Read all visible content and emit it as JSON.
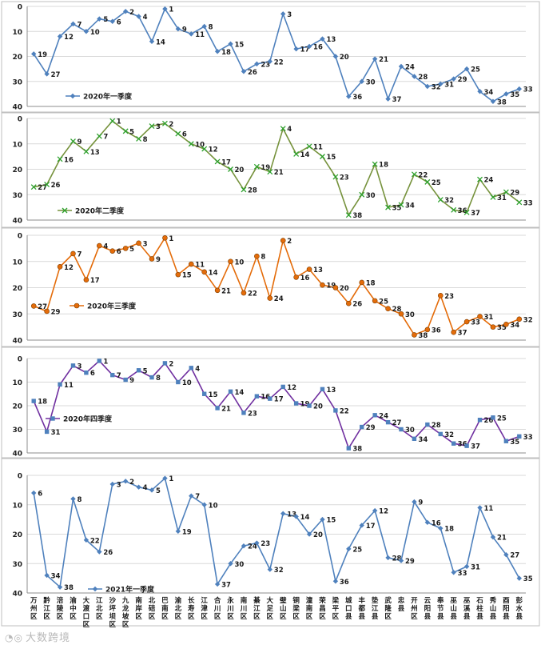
{
  "watermark": {
    "text": "大数跨境"
  },
  "chart_data": [
    {
      "type": "line",
      "title": "",
      "xlabel": "",
      "ylabel": "",
      "ylim": [
        40,
        0
      ],
      "yticks": [
        0,
        10,
        20,
        30,
        40
      ],
      "series": [
        {
          "name": "2020年一季度",
          "color": "#4f81bd",
          "marker": "diamond",
          "values": [
            19,
            27,
            12,
            7,
            10,
            5,
            6,
            2,
            4,
            14,
            1,
            9,
            11,
            8,
            18,
            15,
            26,
            23,
            22,
            3,
            17,
            16,
            13,
            20,
            36,
            30,
            21,
            37,
            24,
            28,
            32,
            31,
            29,
            25,
            34,
            38,
            35,
            33
          ]
        }
      ]
    },
    {
      "type": "line",
      "title": "",
      "xlabel": "",
      "ylabel": "",
      "ylim": [
        40,
        0
      ],
      "yticks": [
        0,
        10,
        20,
        30,
        40
      ],
      "series": [
        {
          "name": "2020年二季度",
          "color": "#76923c",
          "marker": "x",
          "values": [
            27,
            26,
            16,
            9,
            13,
            7,
            1,
            5,
            8,
            3,
            2,
            6,
            10,
            12,
            17,
            20,
            28,
            19,
            21,
            4,
            14,
            11,
            15,
            23,
            38,
            30,
            18,
            35,
            34,
            22,
            25,
            32,
            36,
            37,
            24,
            31,
            29,
            33
          ]
        }
      ]
    },
    {
      "type": "line",
      "title": "",
      "xlabel": "",
      "ylabel": "",
      "ylim": [
        40,
        0
      ],
      "yticks": [
        0,
        10,
        20,
        30,
        40
      ],
      "series": [
        {
          "name": "2020年三季度",
          "color": "#e46c0a",
          "marker": "circle",
          "values": [
            27,
            29,
            12,
            7,
            17,
            4,
            6,
            5,
            3,
            9,
            1,
            15,
            11,
            14,
            21,
            10,
            22,
            8,
            24,
            2,
            16,
            13,
            19,
            20,
            26,
            18,
            25,
            28,
            30,
            38,
            36,
            23,
            37,
            33,
            31,
            35,
            34,
            32
          ]
        }
      ]
    },
    {
      "type": "line",
      "title": "",
      "xlabel": "",
      "ylabel": "",
      "ylim": [
        40,
        0
      ],
      "yticks": [
        0,
        10,
        20,
        30,
        40
      ],
      "series": [
        {
          "name": "2020年四季度",
          "color": "#7030a0",
          "marker": "square",
          "marker_color": "#4f81bd",
          "values": [
            18,
            31,
            11,
            3,
            6,
            1,
            7,
            9,
            5,
            8,
            2,
            10,
            4,
            15,
            21,
            14,
            23,
            16,
            17,
            12,
            19,
            20,
            13,
            22,
            38,
            29,
            24,
            27,
            30,
            34,
            28,
            32,
            36,
            37,
            26,
            25,
            35,
            33
          ]
        }
      ]
    },
    {
      "type": "line",
      "title": "",
      "xlabel": "",
      "ylabel": "",
      "ylim": [
        40,
        0
      ],
      "yticks": [
        0,
        10,
        20,
        30,
        40
      ],
      "categories": [
        "万州区",
        "黔江区",
        "涪陵区",
        "渝中区",
        "大渡口区",
        "江北区",
        "沙坪坝区",
        "九龙坡区",
        "南岸区",
        "北碚区",
        "巴南区",
        "渝北区",
        "长寿区",
        "江津区",
        "合川区",
        "永川区",
        "南川区",
        "綦江区",
        "大足区",
        "璧山区",
        "铜梁区",
        "潼南区",
        "荣昌区",
        "梁平区",
        "城口县",
        "丰都县",
        "垫江县",
        "武隆区",
        "忠县",
        "开州区",
        "云阳县",
        "奉节县",
        "巫山县",
        "巫溪县",
        "石柱县",
        "秀山县",
        "酉阳县",
        "彭水县"
      ],
      "series": [
        {
          "name": "2021年一季度",
          "color": "#4f81bd",
          "marker": "diamond",
          "values": [
            6,
            34,
            38,
            8,
            22,
            26,
            3,
            2,
            4,
            5,
            1,
            19,
            7,
            10,
            37,
            30,
            24,
            23,
            32,
            13,
            14,
            20,
            15,
            36,
            25,
            17,
            12,
            28,
            29,
            9,
            16,
            18,
            33,
            31,
            11,
            21,
            27,
            35
          ]
        }
      ]
    }
  ]
}
